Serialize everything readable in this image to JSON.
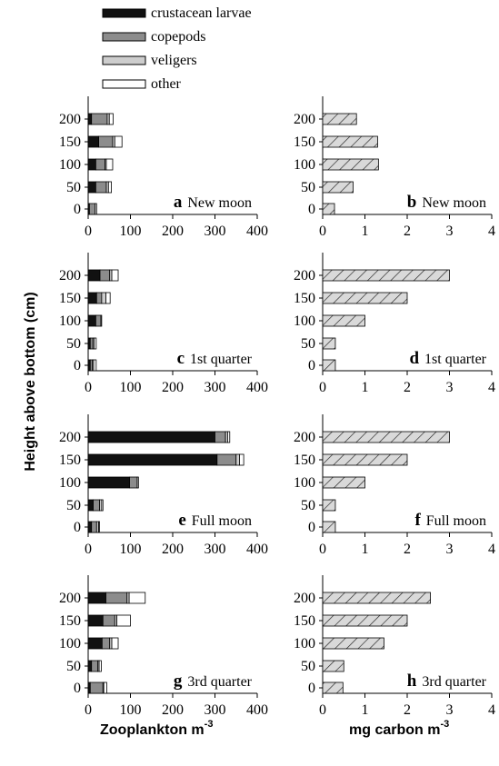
{
  "legend": [
    {
      "name": "crustacean larvae",
      "color": "#111111"
    },
    {
      "name": "copepods",
      "color": "#8c8c8c"
    },
    {
      "name": "veligers",
      "color": "#cdcdcd"
    },
    {
      "name": "other",
      "color": "#ffffff"
    }
  ],
  "axis_labels": {
    "y": "Height above bottom (cm)",
    "x_left": "Zooplankton m",
    "x_left_sup": "-3",
    "x_right": "mg carbon m",
    "x_right_sup": "-3"
  },
  "chart_data": [
    {
      "panel": "a",
      "title": "New moon",
      "type": "bar",
      "orientation": "horizontal",
      "stacked": true,
      "xlim": [
        0,
        400
      ],
      "xticks": [
        0,
        100,
        200,
        300,
        400
      ],
      "categories": [
        200,
        150,
        100,
        50,
        0
      ],
      "series": [
        {
          "name": "crustacean larvae",
          "values": [
            8,
            25,
            18,
            18,
            3
          ]
        },
        {
          "name": "copepods",
          "values": [
            37,
            33,
            22,
            25,
            13
          ]
        },
        {
          "name": "veligers",
          "values": [
            5,
            5,
            3,
            5,
            4
          ]
        },
        {
          "name": "other",
          "values": [
            9,
            17,
            15,
            7,
            0
          ]
        }
      ]
    },
    {
      "panel": "b",
      "title": "New moon",
      "type": "bar",
      "orientation": "horizontal",
      "pattern": "hatched",
      "xlim": [
        0,
        4
      ],
      "xticks": [
        0,
        1,
        2,
        3,
        4
      ],
      "categories": [
        200,
        150,
        100,
        50,
        0
      ],
      "values": [
        0.8,
        1.3,
        1.32,
        0.72,
        0.28
      ]
    },
    {
      "panel": "c",
      "title": "1st quarter",
      "type": "bar",
      "orientation": "horizontal",
      "stacked": true,
      "xlim": [
        0,
        400
      ],
      "xticks": [
        0,
        100,
        200,
        300,
        400
      ],
      "categories": [
        200,
        150,
        100,
        50,
        0
      ],
      "series": [
        {
          "name": "crustacean larvae",
          "values": [
            28,
            20,
            18,
            5,
            5
          ]
        },
        {
          "name": "copepods",
          "values": [
            23,
            12,
            12,
            6,
            5
          ]
        },
        {
          "name": "veligers",
          "values": [
            5,
            10,
            2,
            3,
            3
          ]
        },
        {
          "name": "other",
          "values": [
            15,
            10,
            0,
            5,
            6
          ]
        }
      ]
    },
    {
      "panel": "d",
      "title": "1st quarter",
      "type": "bar",
      "orientation": "horizontal",
      "pattern": "hatched",
      "xlim": [
        0,
        4
      ],
      "xticks": [
        0,
        1,
        2,
        3,
        4
      ],
      "categories": [
        200,
        150,
        100,
        50,
        0
      ],
      "values": [
        3.0,
        2.0,
        1.0,
        0.3,
        0.3
      ]
    },
    {
      "panel": "e",
      "title": "Full moon",
      "type": "bar",
      "orientation": "horizontal",
      "stacked": true,
      "xlim": [
        0,
        400
      ],
      "xticks": [
        0,
        100,
        200,
        300,
        400
      ],
      "categories": [
        200,
        150,
        100,
        50,
        0
      ],
      "series": [
        {
          "name": "crustacean larvae",
          "values": [
            300,
            305,
            98,
            12,
            8
          ]
        },
        {
          "name": "copepods",
          "values": [
            25,
            45,
            18,
            15,
            12
          ]
        },
        {
          "name": "veligers",
          "values": [
            5,
            8,
            3,
            5,
            5
          ]
        },
        {
          "name": "other",
          "values": [
            5,
            10,
            0,
            3,
            2
          ]
        }
      ]
    },
    {
      "panel": "f",
      "title": "Full moon",
      "type": "bar",
      "orientation": "horizontal",
      "pattern": "hatched",
      "xlim": [
        0,
        4
      ],
      "xticks": [
        0,
        1,
        2,
        3,
        4
      ],
      "categories": [
        200,
        150,
        100,
        50,
        0
      ],
      "values": [
        3.0,
        2.0,
        1.0,
        0.3,
        0.3
      ]
    },
    {
      "panel": "g",
      "title": "3rd quarter",
      "type": "bar",
      "orientation": "horizontal",
      "stacked": true,
      "xlim": [
        0,
        400
      ],
      "xticks": [
        0,
        100,
        200,
        300,
        400
      ],
      "categories": [
        200,
        150,
        100,
        50,
        0
      ],
      "series": [
        {
          "name": "crustacean larvae",
          "values": [
            42,
            35,
            33,
            8,
            5
          ]
        },
        {
          "name": "copepods",
          "values": [
            50,
            28,
            18,
            15,
            30
          ]
        },
        {
          "name": "veligers",
          "values": [
            5,
            5,
            5,
            3,
            2
          ]
        },
        {
          "name": "other",
          "values": [
            38,
            32,
            15,
            5,
            7
          ]
        }
      ]
    },
    {
      "panel": "h",
      "title": "3rd quarter",
      "type": "bar",
      "orientation": "horizontal",
      "pattern": "hatched",
      "xlim": [
        0,
        4
      ],
      "xticks": [
        0,
        1,
        2,
        3,
        4
      ],
      "categories": [
        200,
        150,
        100,
        50,
        0
      ],
      "values": [
        2.55,
        2.0,
        1.45,
        0.5,
        0.48
      ]
    }
  ]
}
